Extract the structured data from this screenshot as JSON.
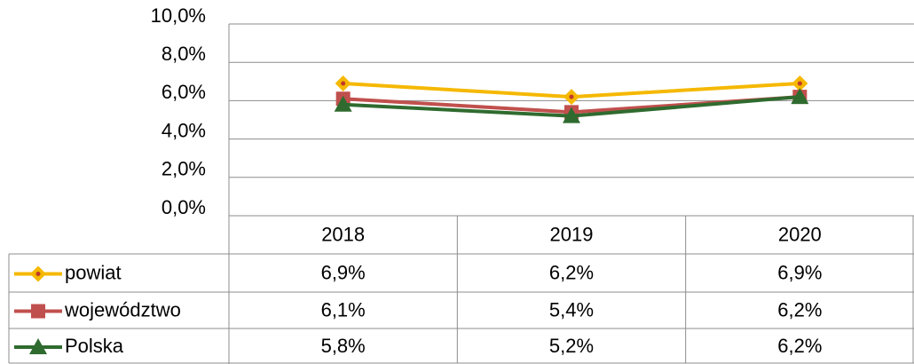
{
  "chart_data": {
    "type": "line",
    "categories": [
      "2018",
      "2019",
      "2020"
    ],
    "series": [
      {
        "name": "powiat",
        "color": "#f5b800",
        "marker": "diamond",
        "values": [
          6.9,
          6.2,
          6.9
        ],
        "value_labels": [
          "6,9%",
          "6,2%",
          "6,9%"
        ]
      },
      {
        "name": "województwo",
        "color": "#c0504d",
        "marker": "square",
        "values": [
          6.1,
          5.4,
          6.2
        ],
        "value_labels": [
          "6,1%",
          "5,4%",
          "6,2%"
        ]
      },
      {
        "name": "Polska",
        "color": "#2f6b2f",
        "marker": "triangle",
        "values": [
          5.8,
          5.2,
          6.2
        ],
        "value_labels": [
          "5,8%",
          "5,2%",
          "6,2%"
        ]
      }
    ],
    "ylim": [
      0,
      10
    ],
    "yticks": [
      {
        "value": 0,
        "label": "0,0%"
      },
      {
        "value": 2,
        "label": "2,0%"
      },
      {
        "value": 4,
        "label": "4,0%"
      },
      {
        "value": 6,
        "label": "6,0%"
      },
      {
        "value": 8,
        "label": "8,0%"
      },
      {
        "value": 10,
        "label": "10,0%"
      }
    ],
    "grid": true
  }
}
